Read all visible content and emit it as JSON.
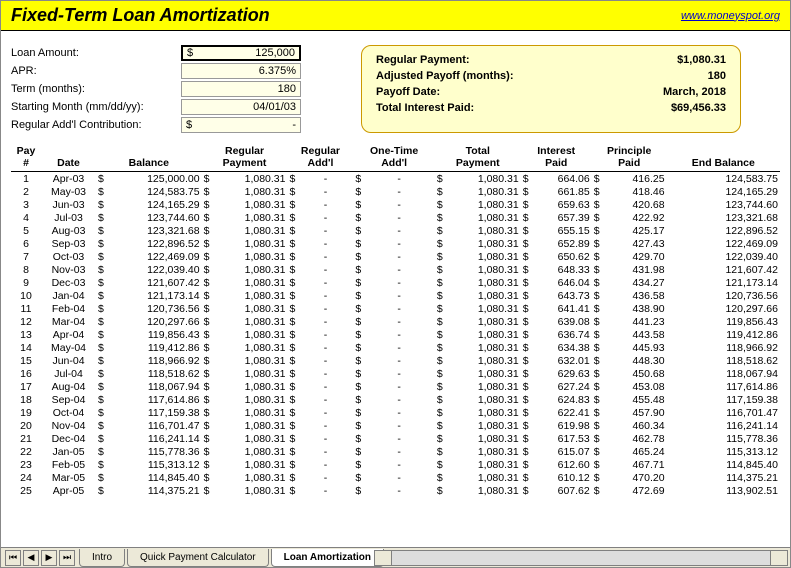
{
  "header": {
    "title": "Fixed-Term Loan Amortization",
    "link": "www.moneyspot.org"
  },
  "inputs": {
    "labels": {
      "amount": "Loan Amount:",
      "apr": "APR:",
      "term": "Term (months):",
      "start": "Starting Month (mm/dd/yy):",
      "addl": "Regular Add'l Contribution:"
    },
    "values": {
      "amount": "125,000",
      "apr": "6.375%",
      "term": "180",
      "start": "04/01/03",
      "addl": "-"
    }
  },
  "summary": {
    "labels": {
      "payment": "Regular Payment:",
      "payoff_months": "Adjusted Payoff (months):",
      "payoff_date": "Payoff Date:",
      "interest": "Total Interest Paid:"
    },
    "values": {
      "payment": "$1,080.31",
      "payoff_months": "180",
      "payoff_date": "March, 2018",
      "interest": "$69,456.33"
    }
  },
  "table": {
    "headers": {
      "pay": "Pay #",
      "date": "Date",
      "balance": "Balance",
      "reg_pmt": "Regular\nPayment",
      "reg_addl": "Regular\nAdd'l",
      "one_time": "One-Time\nAdd'l",
      "total": "Total\nPayment",
      "int_paid": "Interest\nPaid",
      "prin_paid": "Principle\nPaid",
      "end_bal": "End Balance"
    },
    "rows": [
      {
        "n": 1,
        "d": "Apr-03",
        "b": "125,000.00",
        "rp": "1,080.31",
        "tp": "1,080.31",
        "ip": "664.06",
        "pp": "416.25",
        "eb": "124,583.75"
      },
      {
        "n": 2,
        "d": "May-03",
        "b": "124,583.75",
        "rp": "1,080.31",
        "tp": "1,080.31",
        "ip": "661.85",
        "pp": "418.46",
        "eb": "124,165.29"
      },
      {
        "n": 3,
        "d": "Jun-03",
        "b": "124,165.29",
        "rp": "1,080.31",
        "tp": "1,080.31",
        "ip": "659.63",
        "pp": "420.68",
        "eb": "123,744.60"
      },
      {
        "n": 4,
        "d": "Jul-03",
        "b": "123,744.60",
        "rp": "1,080.31",
        "tp": "1,080.31",
        "ip": "657.39",
        "pp": "422.92",
        "eb": "123,321.68"
      },
      {
        "n": 5,
        "d": "Aug-03",
        "b": "123,321.68",
        "rp": "1,080.31",
        "tp": "1,080.31",
        "ip": "655.15",
        "pp": "425.17",
        "eb": "122,896.52"
      },
      {
        "n": 6,
        "d": "Sep-03",
        "b": "122,896.52",
        "rp": "1,080.31",
        "tp": "1,080.31",
        "ip": "652.89",
        "pp": "427.43",
        "eb": "122,469.09"
      },
      {
        "n": 7,
        "d": "Oct-03",
        "b": "122,469.09",
        "rp": "1,080.31",
        "tp": "1,080.31",
        "ip": "650.62",
        "pp": "429.70",
        "eb": "122,039.40"
      },
      {
        "n": 8,
        "d": "Nov-03",
        "b": "122,039.40",
        "rp": "1,080.31",
        "tp": "1,080.31",
        "ip": "648.33",
        "pp": "431.98",
        "eb": "121,607.42"
      },
      {
        "n": 9,
        "d": "Dec-03",
        "b": "121,607.42",
        "rp": "1,080.31",
        "tp": "1,080.31",
        "ip": "646.04",
        "pp": "434.27",
        "eb": "121,173.14"
      },
      {
        "n": 10,
        "d": "Jan-04",
        "b": "121,173.14",
        "rp": "1,080.31",
        "tp": "1,080.31",
        "ip": "643.73",
        "pp": "436.58",
        "eb": "120,736.56"
      },
      {
        "n": 11,
        "d": "Feb-04",
        "b": "120,736.56",
        "rp": "1,080.31",
        "tp": "1,080.31",
        "ip": "641.41",
        "pp": "438.90",
        "eb": "120,297.66"
      },
      {
        "n": 12,
        "d": "Mar-04",
        "b": "120,297.66",
        "rp": "1,080.31",
        "tp": "1,080.31",
        "ip": "639.08",
        "pp": "441.23",
        "eb": "119,856.43"
      },
      {
        "n": 13,
        "d": "Apr-04",
        "b": "119,856.43",
        "rp": "1,080.31",
        "tp": "1,080.31",
        "ip": "636.74",
        "pp": "443.58",
        "eb": "119,412.86"
      },
      {
        "n": 14,
        "d": "May-04",
        "b": "119,412.86",
        "rp": "1,080.31",
        "tp": "1,080.31",
        "ip": "634.38",
        "pp": "445.93",
        "eb": "118,966.92"
      },
      {
        "n": 15,
        "d": "Jun-04",
        "b": "118,966.92",
        "rp": "1,080.31",
        "tp": "1,080.31",
        "ip": "632.01",
        "pp": "448.30",
        "eb": "118,518.62"
      },
      {
        "n": 16,
        "d": "Jul-04",
        "b": "118,518.62",
        "rp": "1,080.31",
        "tp": "1,080.31",
        "ip": "629.63",
        "pp": "450.68",
        "eb": "118,067.94"
      },
      {
        "n": 17,
        "d": "Aug-04",
        "b": "118,067.94",
        "rp": "1,080.31",
        "tp": "1,080.31",
        "ip": "627.24",
        "pp": "453.08",
        "eb": "117,614.86"
      },
      {
        "n": 18,
        "d": "Sep-04",
        "b": "117,614.86",
        "rp": "1,080.31",
        "tp": "1,080.31",
        "ip": "624.83",
        "pp": "455.48",
        "eb": "117,159.38"
      },
      {
        "n": 19,
        "d": "Oct-04",
        "b": "117,159.38",
        "rp": "1,080.31",
        "tp": "1,080.31",
        "ip": "622.41",
        "pp": "457.90",
        "eb": "116,701.47"
      },
      {
        "n": 20,
        "d": "Nov-04",
        "b": "116,701.47",
        "rp": "1,080.31",
        "tp": "1,080.31",
        "ip": "619.98",
        "pp": "460.34",
        "eb": "116,241.14"
      },
      {
        "n": 21,
        "d": "Dec-04",
        "b": "116,241.14",
        "rp": "1,080.31",
        "tp": "1,080.31",
        "ip": "617.53",
        "pp": "462.78",
        "eb": "115,778.36"
      },
      {
        "n": 22,
        "d": "Jan-05",
        "b": "115,778.36",
        "rp": "1,080.31",
        "tp": "1,080.31",
        "ip": "615.07",
        "pp": "465.24",
        "eb": "115,313.12"
      },
      {
        "n": 23,
        "d": "Feb-05",
        "b": "115,313.12",
        "rp": "1,080.31",
        "tp": "1,080.31",
        "ip": "612.60",
        "pp": "467.71",
        "eb": "114,845.40"
      },
      {
        "n": 24,
        "d": "Mar-05",
        "b": "114,845.40",
        "rp": "1,080.31",
        "tp": "1,080.31",
        "ip": "610.12",
        "pp": "470.20",
        "eb": "114,375.21"
      },
      {
        "n": 25,
        "d": "Apr-05",
        "b": "114,375.21",
        "rp": "1,080.31",
        "tp": "1,080.31",
        "ip": "607.62",
        "pp": "472.69",
        "eb": "113,902.51"
      }
    ]
  },
  "tabs": {
    "items": [
      "Intro",
      "Quick Payment Calculator",
      "Loan Amortization"
    ],
    "active": 2
  },
  "colors": {
    "yellow_header": "#ffff00",
    "summary_bg": "#ffffcc",
    "summary_border": "#cc9900",
    "input_bg": "#ffffe8",
    "link": "#0000cc"
  }
}
